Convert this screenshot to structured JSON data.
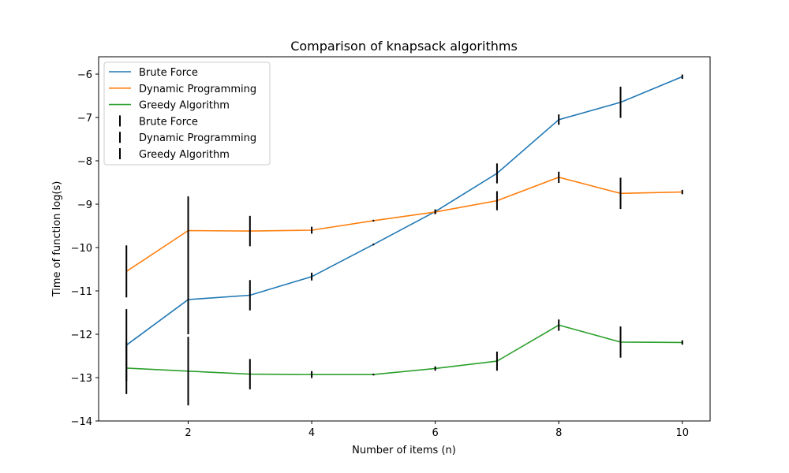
{
  "chart_data": {
    "type": "line",
    "title": "Comparison of knapsack algorithms",
    "xlabel": "Number of items (n)",
    "ylabel": "Time of function log(s)",
    "x": [
      1,
      2,
      3,
      4,
      5,
      6,
      7,
      8,
      9,
      10
    ],
    "xlim": [
      0.55,
      10.45
    ],
    "ylim": [
      -14.0,
      -5.6
    ],
    "xticks": [
      2,
      4,
      6,
      8,
      10
    ],
    "yticks": [
      -14,
      -13,
      -12,
      -11,
      -10,
      -9,
      -8,
      -7,
      -6
    ],
    "grid": false,
    "legend_position": "top-left",
    "series": [
      {
        "name": "Brute Force",
        "color": "#1f77b4",
        "values": [
          -12.25,
          -11.2,
          -11.1,
          -10.67,
          -9.93,
          -9.17,
          -8.29,
          -7.05,
          -6.65,
          -6.06
        ],
        "errors": [
          0.83,
          0.8,
          0.35,
          0.09,
          0.02,
          0.05,
          0.23,
          0.12,
          0.36,
          0.05
        ]
      },
      {
        "name": "Dynamic Programming",
        "color": "#ff7f0e",
        "values": [
          -10.55,
          -9.61,
          -9.62,
          -9.6,
          -9.38,
          -9.18,
          -8.92,
          -8.38,
          -8.75,
          -8.72
        ],
        "errors": [
          0.6,
          0.79,
          0.35,
          0.08,
          0.02,
          0.05,
          0.22,
          0.13,
          0.36,
          0.05
        ]
      },
      {
        "name": "Greedy Algorithm",
        "color": "#2ca02c",
        "values": [
          -12.78,
          -12.85,
          -12.92,
          -12.93,
          -12.93,
          -12.79,
          -12.62,
          -11.79,
          -12.18,
          -12.19
        ],
        "errors": [
          0.6,
          0.79,
          0.35,
          0.08,
          0.02,
          0.05,
          0.22,
          0.13,
          0.36,
          0.05
        ]
      }
    ]
  }
}
